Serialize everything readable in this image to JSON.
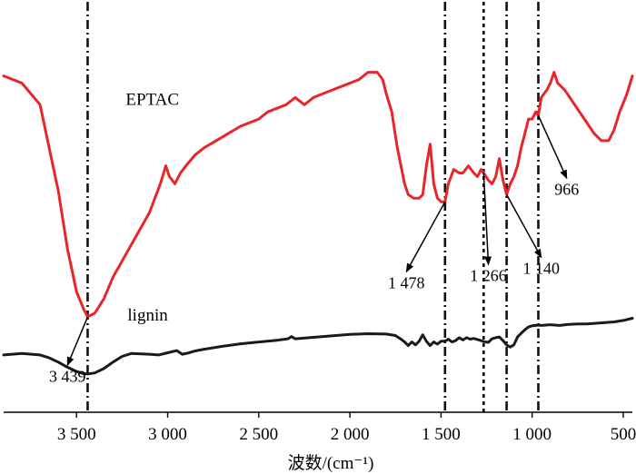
{
  "chart_data": {
    "type": "line",
    "title": "",
    "xlabel": "波数/(cm⁻¹)",
    "ylabel": "",
    "xlim": [
      3900,
      450
    ],
    "x_reversed": true,
    "x_ticks": [
      {
        "value": 3500,
        "label": "3 500"
      },
      {
        "value": 3000,
        "label": "3 000"
      },
      {
        "value": 2500,
        "label": "2 500"
      },
      {
        "value": 2000,
        "label": "2 000"
      },
      {
        "value": 1500,
        "label": "1 500"
      },
      {
        "value": 1000,
        "label": "1 000"
      },
      {
        "value": 500,
        "label": "500"
      }
    ],
    "grid": false,
    "series": [
      {
        "name": "EPTAC",
        "color": "#e8262a",
        "points": [
          [
            3900,
            90
          ],
          [
            3800,
            88
          ],
          [
            3700,
            82
          ],
          [
            3650,
            70
          ],
          [
            3600,
            58
          ],
          [
            3550,
            42
          ],
          [
            3500,
            30
          ],
          [
            3460,
            25
          ],
          [
            3439,
            23
          ],
          [
            3400,
            24
          ],
          [
            3350,
            28
          ],
          [
            3300,
            34
          ],
          [
            3200,
            43
          ],
          [
            3100,
            52
          ],
          [
            3040,
            60
          ],
          [
            3010,
            65
          ],
          [
            2990,
            62
          ],
          [
            2960,
            60
          ],
          [
            2930,
            63
          ],
          [
            2900,
            65
          ],
          [
            2850,
            68
          ],
          [
            2800,
            70
          ],
          [
            2700,
            73
          ],
          [
            2600,
            76
          ],
          [
            2500,
            78
          ],
          [
            2450,
            80
          ],
          [
            2400,
            81
          ],
          [
            2350,
            82
          ],
          [
            2300,
            84
          ],
          [
            2250,
            82
          ],
          [
            2200,
            84
          ],
          [
            2150,
            85
          ],
          [
            2100,
            86
          ],
          [
            2050,
            87
          ],
          [
            2000,
            88
          ],
          [
            1950,
            89
          ],
          [
            1900,
            91
          ],
          [
            1850,
            91
          ],
          [
            1820,
            89
          ],
          [
            1800,
            85
          ],
          [
            1770,
            80
          ],
          [
            1740,
            70
          ],
          [
            1700,
            60
          ],
          [
            1680,
            57
          ],
          [
            1650,
            56
          ],
          [
            1620,
            56
          ],
          [
            1600,
            57
          ],
          [
            1580,
            65
          ],
          [
            1560,
            71
          ],
          [
            1540,
            60
          ],
          [
            1520,
            56
          ],
          [
            1500,
            55
          ],
          [
            1478,
            55
          ],
          [
            1460,
            60
          ],
          [
            1430,
            64
          ],
          [
            1400,
            63
          ],
          [
            1380,
            63
          ],
          [
            1350,
            65
          ],
          [
            1320,
            63
          ],
          [
            1300,
            62
          ],
          [
            1280,
            64
          ],
          [
            1266,
            63
          ],
          [
            1240,
            61
          ],
          [
            1220,
            60
          ],
          [
            1200,
            62
          ],
          [
            1180,
            67
          ],
          [
            1160,
            61
          ],
          [
            1140,
            57
          ],
          [
            1120,
            60
          ],
          [
            1100,
            62
          ],
          [
            1080,
            65
          ],
          [
            1060,
            70
          ],
          [
            1040,
            74
          ],
          [
            1020,
            78
          ],
          [
            1000,
            78
          ],
          [
            980,
            80
          ],
          [
            966,
            79
          ],
          [
            950,
            84
          ],
          [
            920,
            86
          ],
          [
            900,
            88
          ],
          [
            880,
            91
          ],
          [
            860,
            88
          ],
          [
            820,
            86
          ],
          [
            780,
            83
          ],
          [
            740,
            80
          ],
          [
            700,
            77
          ],
          [
            660,
            74
          ],
          [
            620,
            72
          ],
          [
            580,
            72
          ],
          [
            550,
            75
          ],
          [
            520,
            80
          ],
          [
            480,
            85
          ],
          [
            450,
            90
          ]
        ],
        "label_position": "upper-left",
        "label_anchor": [
          3230,
          82
        ]
      },
      {
        "name": "lignin",
        "color": "#1a1a1a",
        "points": [
          [
            3900,
            12.4
          ],
          [
            3800,
            12.8
          ],
          [
            3700,
            12.4
          ],
          [
            3650,
            11.6
          ],
          [
            3600,
            10.4
          ],
          [
            3550,
            9.0
          ],
          [
            3500,
            7.8
          ],
          [
            3460,
            7.2
          ],
          [
            3439,
            7.1
          ],
          [
            3400,
            7.4
          ],
          [
            3350,
            8.6
          ],
          [
            3300,
            10.4
          ],
          [
            3250,
            12.0
          ],
          [
            3200,
            12.8
          ],
          [
            3100,
            12.6
          ],
          [
            3050,
            12.4
          ],
          [
            3000,
            13.0
          ],
          [
            2950,
            13.6
          ],
          [
            2920,
            12.6
          ],
          [
            2890,
            12.9
          ],
          [
            2850,
            13.5
          ],
          [
            2800,
            14.0
          ],
          [
            2700,
            14.8
          ],
          [
            2600,
            15.5
          ],
          [
            2500,
            16.0
          ],
          [
            2400,
            16.5
          ],
          [
            2340,
            16.9
          ],
          [
            2320,
            17.5
          ],
          [
            2300,
            16.9
          ],
          [
            2200,
            17.3
          ],
          [
            2100,
            17.7
          ],
          [
            2000,
            18.1
          ],
          [
            1900,
            18.3
          ],
          [
            1800,
            18.2
          ],
          [
            1750,
            17.8
          ],
          [
            1720,
            16.8
          ],
          [
            1700,
            16.0
          ],
          [
            1680,
            15.0
          ],
          [
            1660,
            16.0
          ],
          [
            1640,
            15.2
          ],
          [
            1620,
            16.2
          ],
          [
            1600,
            18.0
          ],
          [
            1580,
            16.2
          ],
          [
            1560,
            15.0
          ],
          [
            1540,
            16.0
          ],
          [
            1520,
            15.4
          ],
          [
            1500,
            16.2
          ],
          [
            1478,
            16.2
          ],
          [
            1460,
            16.8
          ],
          [
            1440,
            16.0
          ],
          [
            1420,
            16.4
          ],
          [
            1400,
            17.2
          ],
          [
            1380,
            16.6
          ],
          [
            1360,
            17.2
          ],
          [
            1340,
            16.8
          ],
          [
            1320,
            17.0
          ],
          [
            1300,
            16.7
          ],
          [
            1280,
            16.4
          ],
          [
            1266,
            16.1
          ],
          [
            1240,
            15.9
          ],
          [
            1220,
            16.9
          ],
          [
            1200,
            17.2
          ],
          [
            1180,
            17.4
          ],
          [
            1160,
            16.4
          ],
          [
            1140,
            15.2
          ],
          [
            1120,
            14.6
          ],
          [
            1100,
            15.2
          ],
          [
            1080,
            17.4
          ],
          [
            1060,
            18.4
          ],
          [
            1040,
            19.4
          ],
          [
            1020,
            20.2
          ],
          [
            1000,
            20.5
          ],
          [
            966,
            20.7
          ],
          [
            950,
            20.6
          ],
          [
            900,
            20.8
          ],
          [
            850,
            20.6
          ],
          [
            800,
            20.9
          ],
          [
            750,
            21.0
          ],
          [
            700,
            21.0
          ],
          [
            650,
            21.2
          ],
          [
            600,
            21.4
          ],
          [
            550,
            21.6
          ],
          [
            500,
            22.0
          ],
          [
            450,
            22.6
          ]
        ],
        "label_position": "middle-left",
        "label_anchor": [
          3220,
          22
        ]
      }
    ],
    "y_range": [
      0,
      100
    ],
    "reference_lines": [
      {
        "x": 3439,
        "style": "dash-dot"
      },
      {
        "x": 1478,
        "style": "dash-dot"
      },
      {
        "x": 1266,
        "style": "dotted"
      },
      {
        "x": 1140,
        "style": "dash-dot"
      },
      {
        "x": 966,
        "style": "dash-dot"
      }
    ],
    "annotations": [
      {
        "label": "3 439",
        "peak_x": 3439,
        "peak_y": 23,
        "text_at": [
          3550,
          8
        ]
      },
      {
        "label": "1 478",
        "peak_x": 1478,
        "peak_y": 55,
        "text_at": [
          1690,
          34
        ]
      },
      {
        "label": "1 266",
        "peak_x": 1266,
        "peak_y": 63,
        "text_at": [
          1240,
          36
        ]
      },
      {
        "label": "1 140",
        "peak_x": 1140,
        "peak_y": 57,
        "text_at": [
          950,
          38
        ]
      },
      {
        "label": "966",
        "peak_x": 966,
        "peak_y": 79,
        "text_at": [
          810,
          60
        ]
      }
    ]
  }
}
